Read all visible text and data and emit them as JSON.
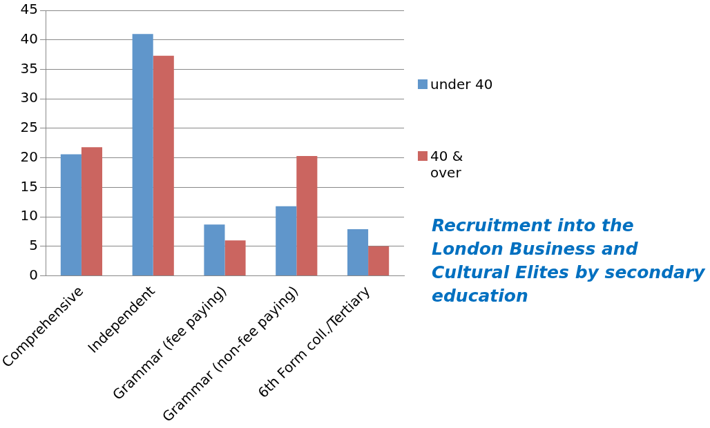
{
  "chart_data": {
    "type": "bar",
    "title": "Recruitment into the London Business and Cultural Elites by secondary education",
    "categories": [
      "Comprehensive",
      "Independent",
      "Grammar (fee paying)",
      "Grammar (non-fee paying)",
      "6th Form coll./Tertiary"
    ],
    "series": [
      {
        "name": "under 40",
        "color": "#6096cb",
        "values": [
          20.6,
          41.0,
          8.7,
          11.8,
          7.9
        ]
      },
      {
        "name": "40 & over",
        "color": "#cb6560",
        "values": [
          21.8,
          37.3,
          6.0,
          20.3,
          5.0
        ]
      }
    ],
    "ylim": [
      0,
      45
    ],
    "yticks": [
      0,
      5,
      10,
      15,
      20,
      25,
      30,
      35,
      40,
      45
    ],
    "grid": "y",
    "legend": "right"
  }
}
